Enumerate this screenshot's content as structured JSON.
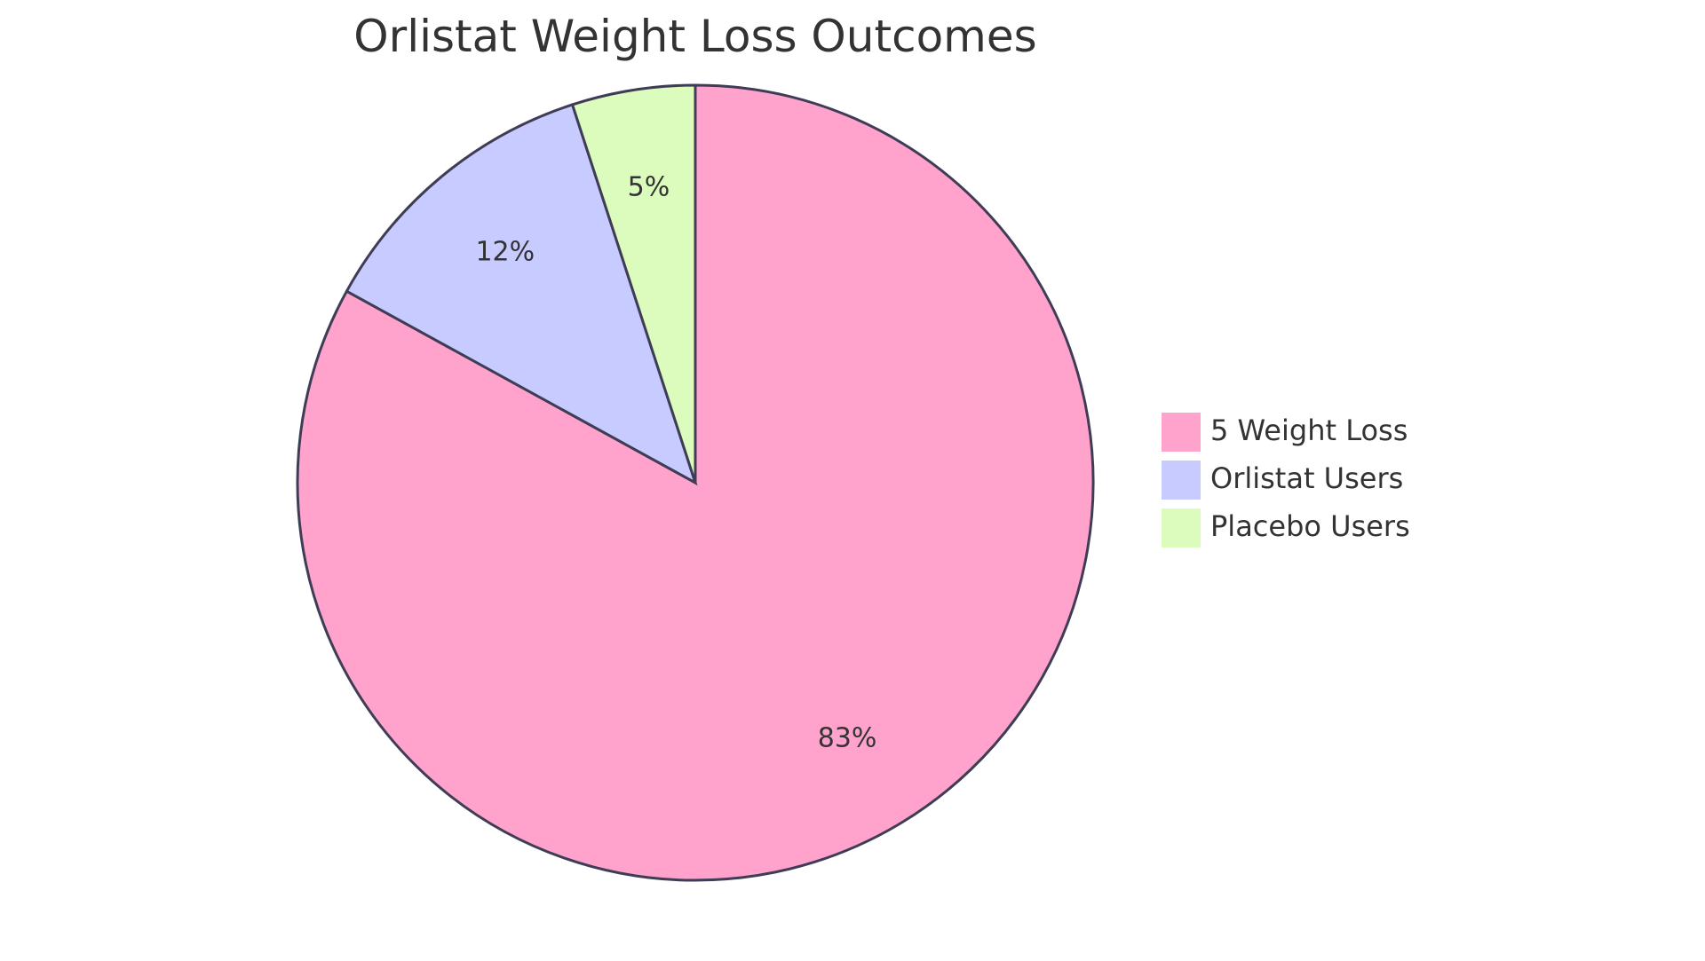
{
  "chart_data": {
    "type": "pie",
    "title": "Orlistat Weight Loss Outcomes",
    "legend_position": "right",
    "slices": [
      {
        "label": "5 Weight Loss",
        "value": 83,
        "display": "83%",
        "color": "#ffa3cc"
      },
      {
        "label": "Orlistat Users",
        "value": 12,
        "display": "12%",
        "color": "#c8cbff"
      },
      {
        "label": "Placebo Users",
        "value": 5,
        "display": "5%",
        "color": "#dbfcbc"
      }
    ]
  }
}
